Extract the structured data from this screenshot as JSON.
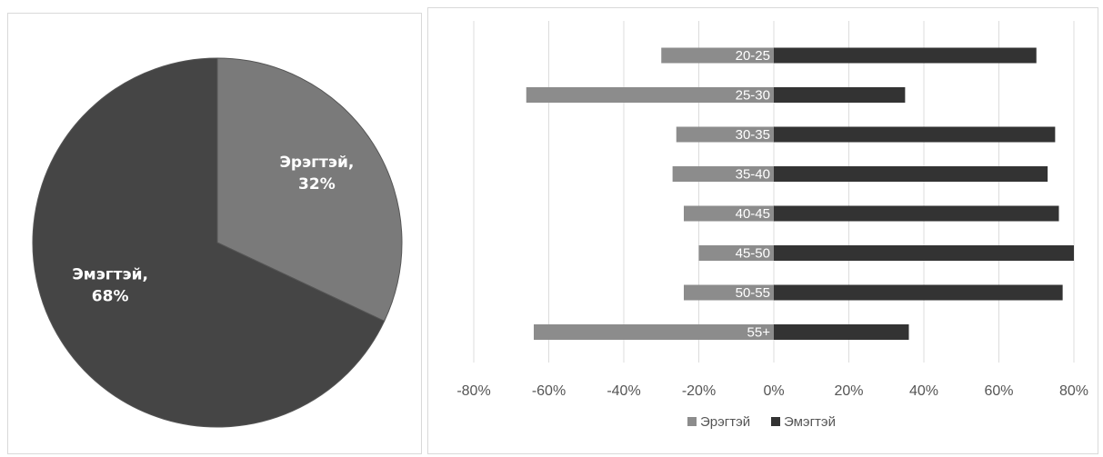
{
  "chart_data": [
    {
      "type": "pie",
      "slices": [
        {
          "label": "Эрэгтэй",
          "value": 32,
          "label_text": "Эрэгтэй,",
          "pct_text": "32%",
          "color": "#7a7a7a"
        },
        {
          "label": "Эмэгтэй",
          "value": 68,
          "label_text": "Эмэгтэй,",
          "pct_text": "68%",
          "color": "#454545"
        }
      ]
    },
    {
      "type": "bar",
      "orientation": "horizontal",
      "categories": [
        "20-25",
        "25-30",
        "30-35",
        "35-40",
        "40-45",
        "45-50",
        "50-55",
        "55+"
      ],
      "series": [
        {
          "name": "Эрэгтэй",
          "color": "#8c8c8c",
          "values": [
            -30,
            -66,
            -26,
            -27,
            -24,
            -20,
            -24,
            -64
          ]
        },
        {
          "name": "Эмэгтэй",
          "color": "#333333",
          "values": [
            70,
            35,
            75,
            73,
            76,
            80,
            77,
            36
          ]
        }
      ],
      "xlim": [
        -80,
        80
      ],
      "xticks": [
        -80,
        -60,
        -40,
        -20,
        0,
        20,
        40,
        60,
        80
      ],
      "xtick_labels": [
        "-80%",
        "-60%",
        "-40%",
        "-20%",
        "0%",
        "20%",
        "40%",
        "60%",
        "80%"
      ],
      "grid": "vertical",
      "legend": "bottom"
    }
  ]
}
